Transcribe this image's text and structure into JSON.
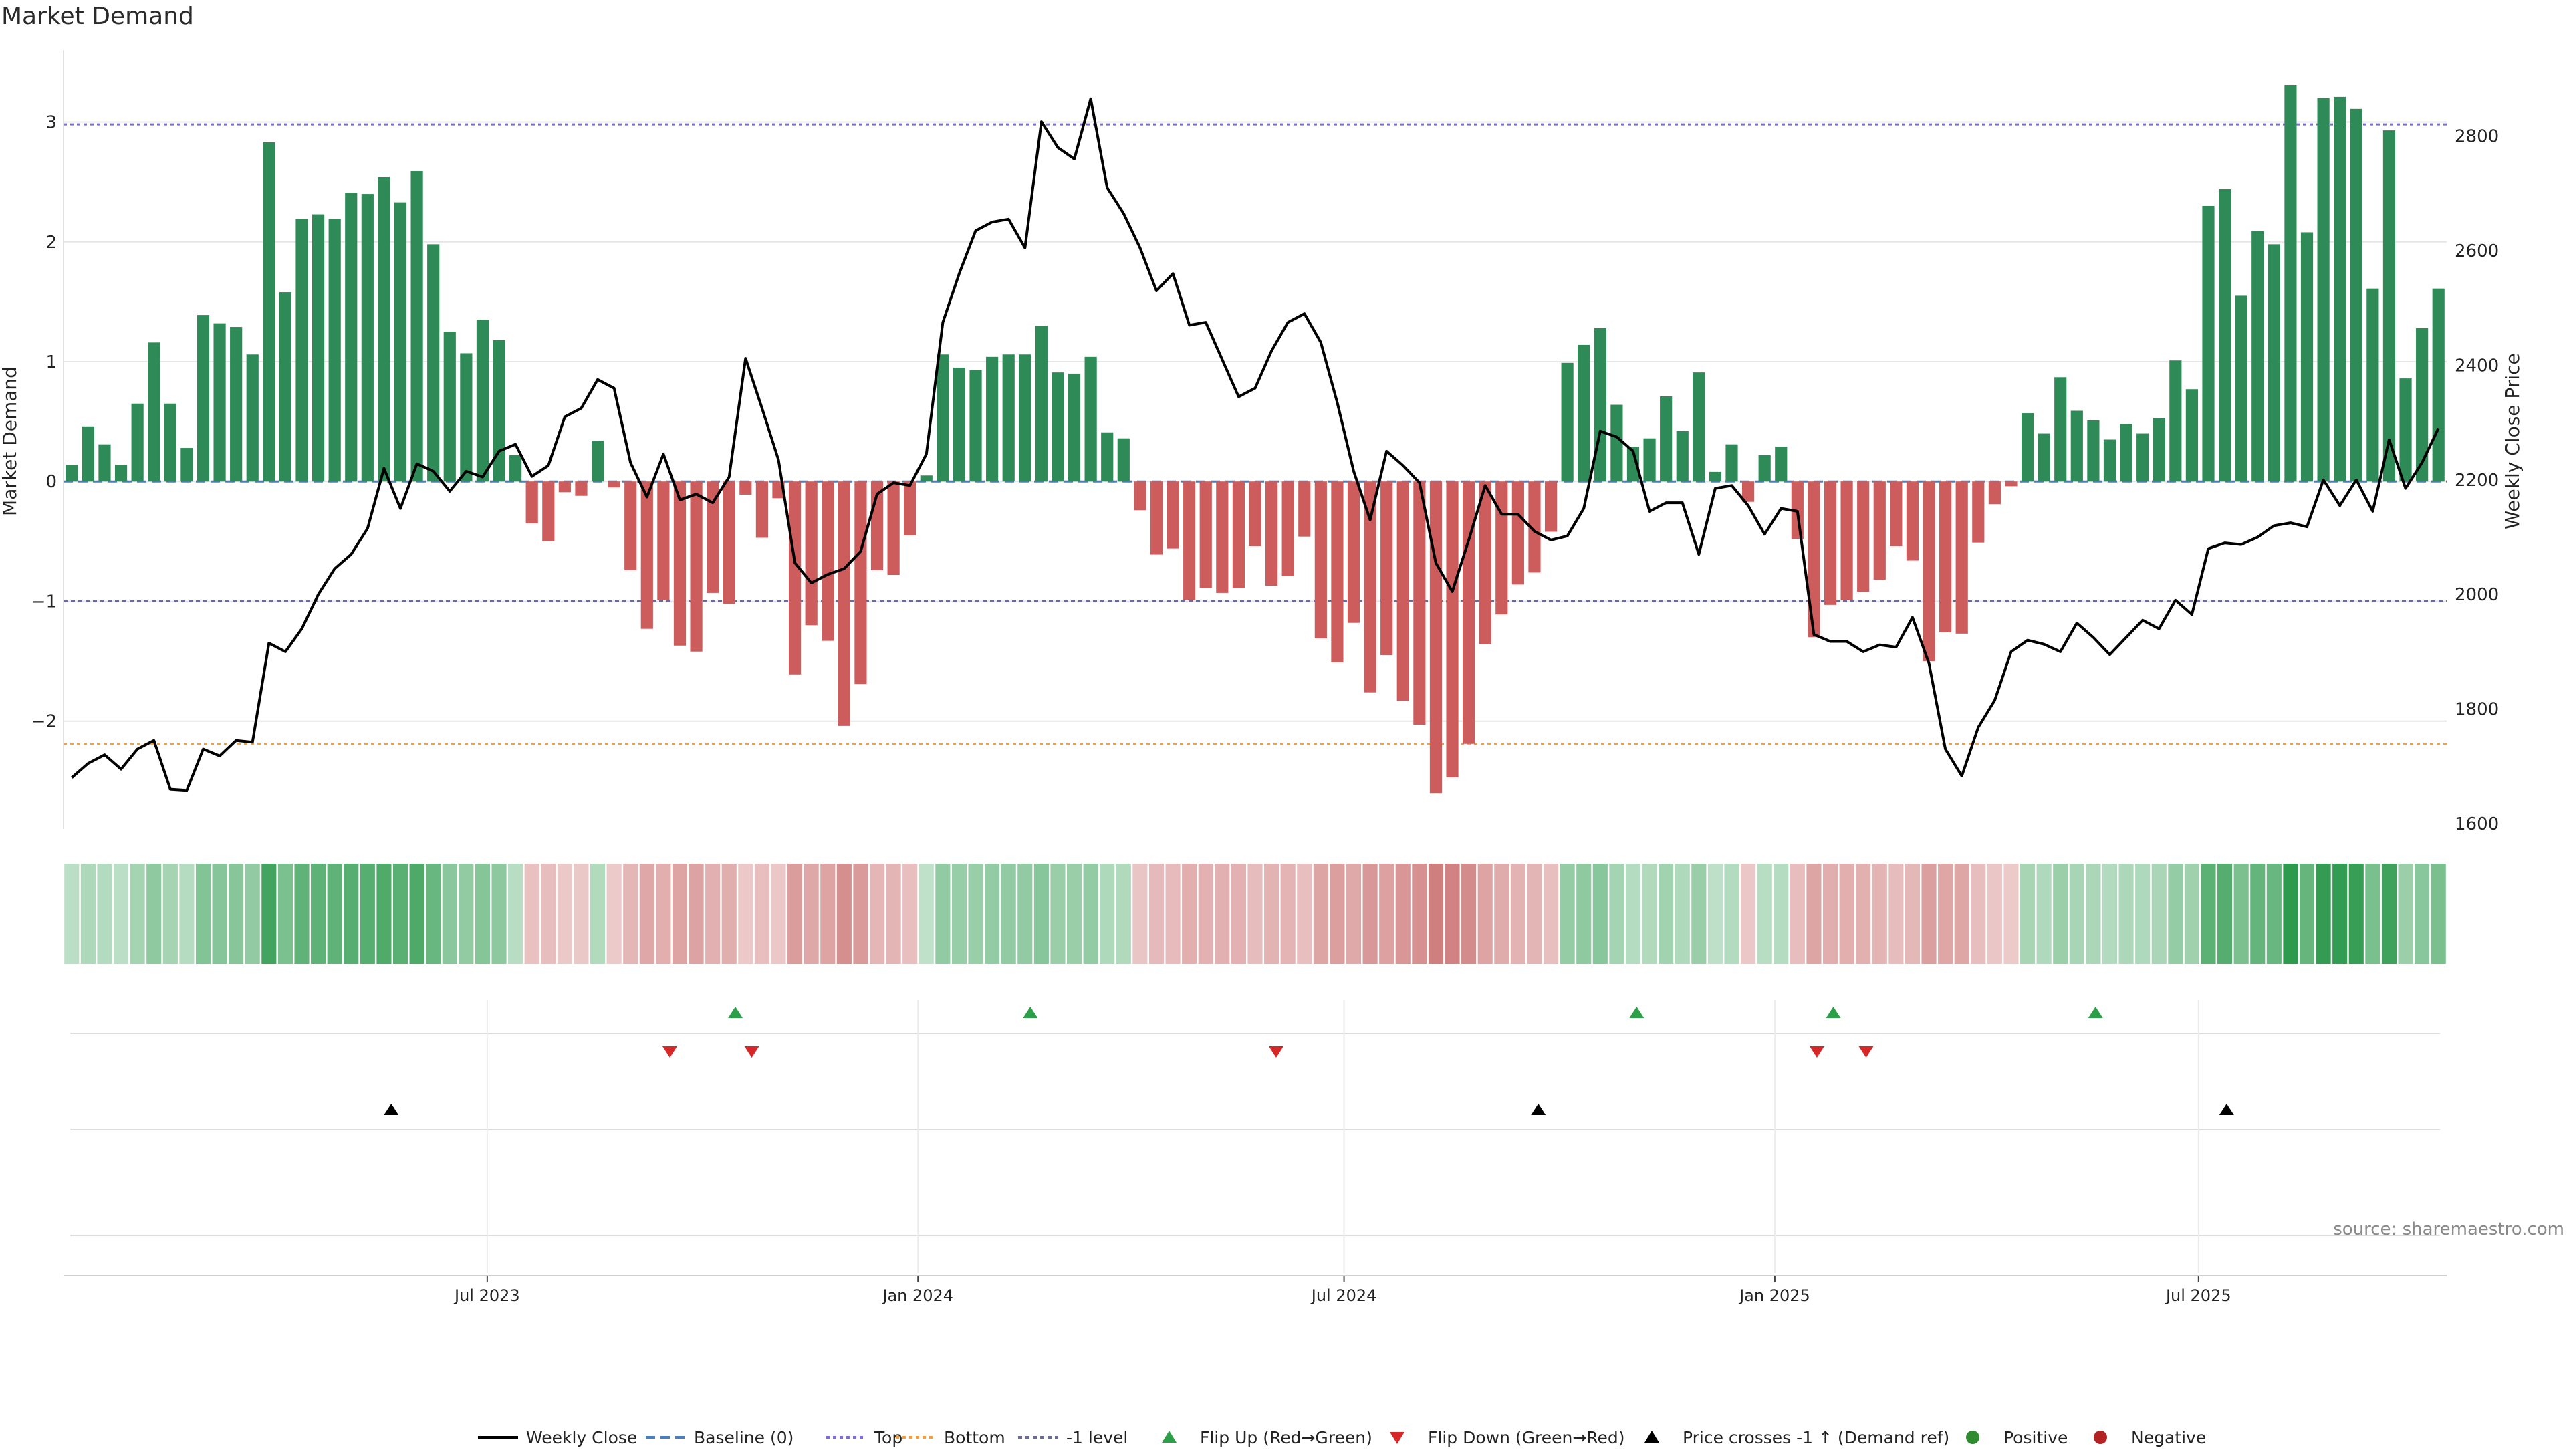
{
  "title": "Market Demand",
  "source": "source: sharemaestro.com",
  "colors": {
    "positive": "#2e8b57",
    "negative": "#cd5c5c",
    "price": "#000000",
    "baseline": "#4a7fbf",
    "top": "#7b6cd9",
    "bottom": "#f0a040",
    "minus1": "#6b6b9a",
    "flip_up": "#2ca048",
    "flip_down": "#d62728",
    "grid": "#e6e6e6"
  },
  "chart_data": {
    "type": "bar",
    "title": "Market Demand",
    "ylabel": "Market Demand",
    "y2label": "Weekly Close Price",
    "ylim": [
      -2.9,
      3.6
    ],
    "y2lim": [
      1600,
      2950
    ],
    "yticks": [
      3,
      2,
      1,
      0,
      -1,
      -2
    ],
    "ytick_labels": [
      "3",
      "2",
      "1",
      "0",
      "−1",
      "−2"
    ],
    "y2ticks": [
      2800,
      2600,
      2400,
      2200,
      2000,
      1800,
      1600
    ],
    "y2tick_labels": [
      "2800",
      "2600",
      "2400",
      "2200",
      "2000",
      "1800",
      "1600"
    ],
    "x_start": "2023-01-01",
    "x_end": "2025-10-15",
    "x_date_ticks": [
      "2023-07-01",
      "2024-01-01",
      "2024-07-01",
      "2025-01-01",
      "2025-07-01"
    ],
    "x_tick_labels": [
      "Jul 2023",
      "Jan 2024",
      "Jul 2024",
      "Jan 2025",
      "Jul 2025"
    ],
    "top_level": 2.98,
    "bottom_level": -2.19,
    "minus1_level": -1,
    "demand": [
      0.14,
      0.46,
      0.31,
      0.14,
      0.65,
      1.16,
      0.65,
      0.28,
      1.39,
      1.32,
      1.29,
      1.06,
      2.83,
      1.58,
      2.19,
      2.23,
      2.19,
      2.41,
      2.4,
      2.54,
      2.33,
      2.59,
      1.98,
      1.25,
      1.07,
      1.35,
      1.18,
      0.22,
      -0.35,
      -0.5,
      -0.09,
      -0.12,
      0.34,
      -0.05,
      -0.74,
      -1.23,
      -0.99,
      -1.37,
      -1.42,
      -0.93,
      -1.02,
      -0.11,
      -0.47,
      -0.14,
      -1.61,
      -1.2,
      -1.33,
      -2.04,
      -1.69,
      -0.74,
      -0.78,
      -0.45,
      0.05,
      1.06,
      0.95,
      0.93,
      1.04,
      1.06,
      1.06,
      1.3,
      0.91,
      0.9,
      1.04,
      0.41,
      0.36,
      -0.24,
      -0.61,
      -0.56,
      -0.99,
      -0.89,
      -0.93,
      -0.89,
      -0.54,
      -0.87,
      -0.79,
      -0.46,
      -1.31,
      -1.51,
      -1.18,
      -1.76,
      -1.45,
      -1.83,
      -2.03,
      -2.6,
      -2.47,
      -2.19,
      -1.36,
      -1.11,
      -0.86,
      -0.76,
      -0.42,
      0.99,
      1.14,
      1.28,
      0.64,
      0.29,
      0.36,
      0.71,
      0.42,
      0.91,
      0.08,
      0.31,
      -0.17,
      0.22,
      0.29,
      -0.48,
      -1.3,
      -1.03,
      -0.99,
      -0.92,
      -0.82,
      -0.54,
      -0.66,
      -1.5,
      -1.26,
      -1.27,
      -0.51,
      -0.19,
      -0.04,
      0.57,
      0.4,
      0.87,
      0.59,
      0.51,
      0.35,
      0.48,
      0.4,
      0.53,
      1.01,
      0.77,
      2.3,
      2.44,
      1.55,
      2.09,
      1.98,
      3.31,
      2.08,
      3.2,
      3.21,
      3.11,
      1.61,
      2.93,
      0.86,
      1.28,
      1.61
    ],
    "price": [
      1680,
      1705,
      1720,
      1695,
      1730,
      1745,
      1660,
      1658,
      1730,
      1718,
      1745,
      1742,
      1915,
      1900,
      1940,
      2000,
      2045,
      2070,
      2115,
      2220,
      2150,
      2228,
      2215,
      2180,
      2215,
      2205,
      2250,
      2262,
      2206,
      2225,
      2310,
      2325,
      2375,
      2360,
      2230,
      2170,
      2245,
      2165,
      2175,
      2160,
      2205,
      2412,
      2325,
      2235,
      2055,
      2020,
      2035,
      2045,
      2075,
      2175,
      2195,
      2190,
      2245,
      2475,
      2560,
      2635,
      2650,
      2655,
      2605,
      2825,
      2780,
      2760,
      2865,
      2710,
      2665,
      2605,
      2530,
      2560,
      2470,
      2475,
      2410,
      2345,
      2360,
      2425,
      2475,
      2490,
      2440,
      2335,
      2215,
      2130,
      2250,
      2225,
      2195,
      2055,
      2005,
      2095,
      2190,
      2140,
      2140,
      2110,
      2095,
      2102,
      2150,
      2285,
      2275,
      2250,
      2145,
      2160,
      2160,
      2070,
      2185,
      2190,
      2155,
      2105,
      2150,
      2145,
      1930,
      1918,
      1918,
      1900,
      1912,
      1908,
      1960,
      1880,
      1730,
      1683,
      1768,
      1815,
      1900,
      1920,
      1913,
      1900,
      1950,
      1925,
      1895,
      1925,
      1955,
      1940,
      1990,
      1965,
      2080,
      2090,
      2087,
      2100,
      2120,
      2125,
      2118,
      2200,
      2155,
      2200,
      2145,
      2270,
      2185,
      2230,
      2290
    ],
    "flip_up_dates": [
      "2023-10-15",
      "2024-02-18",
      "2024-11-03",
      "2025-01-26",
      "2025-05-18"
    ],
    "flip_down_dates": [
      "2023-09-17",
      "2023-10-22",
      "2024-06-02",
      "2025-01-19",
      "2025-02-09"
    ],
    "price_cross_dates": [
      "2023-05-21",
      "2024-09-22",
      "2025-07-13"
    ],
    "series": [
      {
        "name": "Weekly Close"
      },
      {
        "name": "Baseline (0)"
      },
      {
        "name": "Top"
      },
      {
        "name": "Bottom"
      },
      {
        "name": "-1 level"
      },
      {
        "name": "Flip Up (Red→Green)"
      },
      {
        "name": "Flip Down (Green→Red)"
      },
      {
        "name": "Price crosses -1 ↑ (Demand ref)"
      },
      {
        "name": "Positive"
      },
      {
        "name": "Negative"
      }
    ]
  }
}
